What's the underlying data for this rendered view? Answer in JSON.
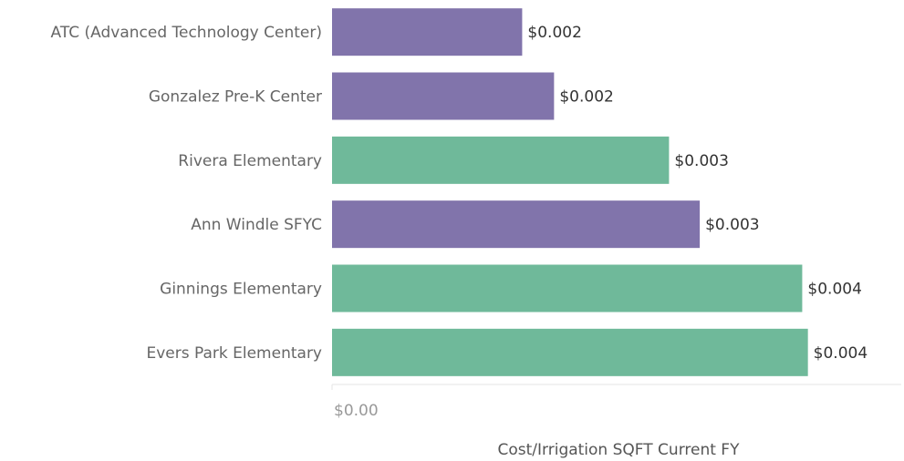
{
  "chart_data": {
    "type": "hbar",
    "categories": [
      "ATC (Advanced Technology Center)",
      "Gonzalez Pre-K Center",
      "Rivera Elementary",
      "Ann Windle  SFYC",
      "Ginnings Elementary",
      "Evers Park Elementary"
    ],
    "values": [
      0.00167,
      0.00195,
      0.00296,
      0.00323,
      0.00413,
      0.00418
    ],
    "value_labels": [
      "$0.002",
      "$0.002",
      "$0.003",
      "$0.003",
      "$0.004",
      "$0.004"
    ],
    "colors": [
      "#8174ab",
      "#8174ab",
      "#6fb99a",
      "#8174ab",
      "#6fb99a",
      "#6fb99a"
    ],
    "xlim": [
      0,
      0.005
    ],
    "xticks": [
      {
        "value": 0,
        "label": "$0.00"
      }
    ],
    "xlabel": "Cost/Irrigation SQFT Current FY"
  }
}
